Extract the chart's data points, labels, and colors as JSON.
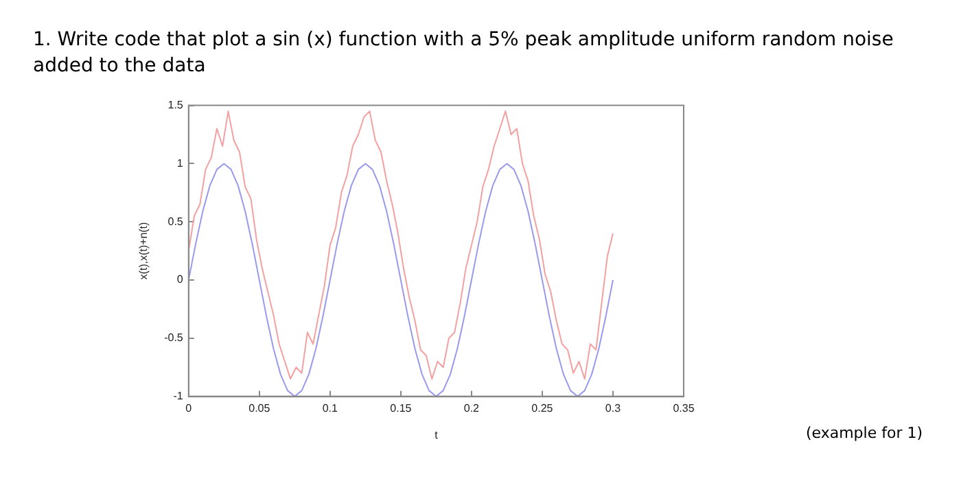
{
  "chart_data": {
    "type": "line",
    "title": "1. Write code that plot a sin (x) function with a 5% peak amplitude uniform random noise added to the data",
    "xlabel": "t",
    "ylabel": "x(t),x(t)+n(t)",
    "annotations": [
      "(example for 1)"
    ],
    "xlim": [
      0,
      0.35
    ],
    "xticks": [
      0,
      0.05,
      0.1,
      0.15,
      0.2,
      0.25,
      0.3,
      0.35
    ],
    "ylim": [
      -1,
      1.5
    ],
    "yticks": [
      -1,
      -0.5,
      0,
      0.5,
      1,
      1.5
    ],
    "marker": "none",
    "line_style": "solid",
    "series": [
      {
        "color": "#9999ee",
        "x": [
          0,
          0.005,
          0.01,
          0.015,
          0.02,
          0.025,
          0.03,
          0.035,
          0.04,
          0.045,
          0.05,
          0.055,
          0.06,
          0.065,
          0.07,
          0.075,
          0.08,
          0.085,
          0.09,
          0.095,
          0.1,
          0.105,
          0.11,
          0.115,
          0.12,
          0.125,
          0.13,
          0.135,
          0.14,
          0.145,
          0.15,
          0.155,
          0.16,
          0.165,
          0.17,
          0.175,
          0.18,
          0.185,
          0.19,
          0.195,
          0.2,
          0.205,
          0.21,
          0.215,
          0.22,
          0.225,
          0.23,
          0.235,
          0.24,
          0.245,
          0.25,
          0.255,
          0.26,
          0.265,
          0.27,
          0.275,
          0.28,
          0.285,
          0.29,
          0.295,
          0.3
        ],
        "values": [
          0,
          0.31,
          0.59,
          0.81,
          0.95,
          1,
          0.95,
          0.81,
          0.59,
          0.31,
          0,
          -0.31,
          -0.59,
          -0.81,
          -0.95,
          -1,
          -0.95,
          -0.81,
          -0.59,
          -0.31,
          0,
          0.31,
          0.59,
          0.81,
          0.95,
          1,
          0.95,
          0.81,
          0.59,
          0.31,
          0,
          -0.31,
          -0.59,
          -0.81,
          -0.95,
          -1,
          -0.95,
          -0.81,
          -0.59,
          -0.31,
          0,
          0.31,
          0.59,
          0.81,
          0.95,
          1,
          0.95,
          0.81,
          0.59,
          0.31,
          0,
          -0.31,
          -0.59,
          -0.81,
          -0.95,
          -1,
          -0.95,
          -0.81,
          -0.59,
          -0.31,
          0
        ]
      },
      {
        "color": "#f4a0a0",
        "x": [
          0,
          0.004,
          0.008,
          0.012,
          0.016,
          0.02,
          0.024,
          0.028,
          0.032,
          0.036,
          0.04,
          0.044,
          0.048,
          0.052,
          0.056,
          0.06,
          0.064,
          0.068,
          0.072,
          0.076,
          0.08,
          0.084,
          0.088,
          0.092,
          0.096,
          0.1,
          0.104,
          0.108,
          0.112,
          0.116,
          0.12,
          0.124,
          0.128,
          0.132,
          0.136,
          0.14,
          0.144,
          0.148,
          0.152,
          0.156,
          0.16,
          0.164,
          0.168,
          0.172,
          0.176,
          0.18,
          0.184,
          0.188,
          0.192,
          0.196,
          0.2,
          0.204,
          0.208,
          0.212,
          0.216,
          0.22,
          0.224,
          0.228,
          0.232,
          0.236,
          0.24,
          0.244,
          0.248,
          0.252,
          0.256,
          0.26,
          0.264,
          0.268,
          0.272,
          0.276,
          0.28,
          0.284,
          0.288,
          0.292,
          0.296,
          0.3
        ],
        "values": [
          0.25,
          0.55,
          0.65,
          0.95,
          1.05,
          1.3,
          1.15,
          1.45,
          1.2,
          1.1,
          0.8,
          0.7,
          0.35,
          0.1,
          -0.1,
          -0.3,
          -0.55,
          -0.7,
          -0.85,
          -0.75,
          -0.8,
          -0.45,
          -0.55,
          -0.3,
          -0.05,
          0.3,
          0.45,
          0.75,
          0.9,
          1.15,
          1.25,
          1.4,
          1.45,
          1.2,
          1.1,
          0.85,
          0.65,
          0.4,
          0.1,
          -0.15,
          -0.35,
          -0.6,
          -0.65,
          -0.85,
          -0.7,
          -0.75,
          -0.5,
          -0.45,
          -0.2,
          0.1,
          0.3,
          0.5,
          0.8,
          0.95,
          1.15,
          1.3,
          1.45,
          1.25,
          1.3,
          1.0,
          0.85,
          0.55,
          0.35,
          0.05,
          -0.1,
          -0.35,
          -0.55,
          -0.6,
          -0.8,
          -0.7,
          -0.85,
          -0.55,
          -0.6,
          -0.2,
          0.2,
          0.4
        ]
      }
    ]
  }
}
